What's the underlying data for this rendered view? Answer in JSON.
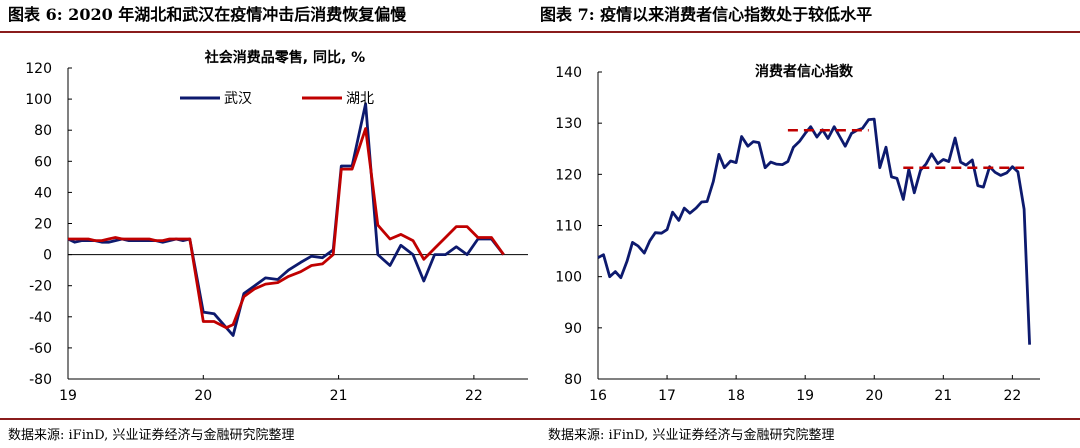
{
  "header": {
    "left": "图表 6: 2020 年湖北和武汉在疫情冲击后消费恢复偏慢",
    "right": "图表 7: 疫情以来消费者信心指数处于较低水平"
  },
  "source": {
    "left": "数据来源: iFinD, 兴业证券经济与金融研究院整理",
    "right": "数据来源: iFinD, 兴业证券经济与金融研究院整理"
  },
  "colors": {
    "wuhan": "#0d1a6e",
    "hubei": "#c00000",
    "confidence": "#0d1a6e",
    "reference": "#c00000"
  },
  "chart_data": [
    {
      "type": "line",
      "title": "社会消费品零售, 同比, %",
      "ylim": [
        -80,
        120
      ],
      "yticks": [
        -80,
        -60,
        -40,
        -20,
        0,
        20,
        40,
        60,
        80,
        100,
        120
      ],
      "xlim": [
        2019.0,
        2022.4
      ],
      "xticks": [
        {
          "x": 2019,
          "label": "19"
        },
        {
          "x": 2020,
          "label": "20"
        },
        {
          "x": 2021,
          "label": "21"
        },
        {
          "x": 2022,
          "label": "22"
        }
      ],
      "legend": "top-center",
      "series": [
        {
          "name": "武汉",
          "points": [
            [
              2019.0,
              10
            ],
            [
              2019.05,
              8
            ],
            [
              2019.1,
              9
            ],
            [
              2019.15,
              9
            ],
            [
              2019.2,
              9
            ],
            [
              2019.25,
              8
            ],
            [
              2019.3,
              8
            ],
            [
              2019.35,
              9
            ],
            [
              2019.4,
              10
            ],
            [
              2019.45,
              9
            ],
            [
              2019.5,
              9
            ],
            [
              2019.55,
              9
            ],
            [
              2019.6,
              9
            ],
            [
              2019.65,
              9
            ],
            [
              2019.7,
              8
            ],
            [
              2019.75,
              9
            ],
            [
              2019.8,
              10
            ],
            [
              2019.85,
              9
            ],
            [
              2019.9,
              10
            ],
            [
              2020.0,
              -37
            ],
            [
              2020.08,
              -38
            ],
            [
              2020.17,
              -47
            ],
            [
              2020.22,
              -52
            ],
            [
              2020.3,
              -25
            ],
            [
              2020.38,
              -20
            ],
            [
              2020.46,
              -15
            ],
            [
              2020.55,
              -16
            ],
            [
              2020.63,
              -10
            ],
            [
              2020.72,
              -5
            ],
            [
              2020.8,
              -1
            ],
            [
              2020.88,
              -2
            ],
            [
              2020.96,
              3
            ],
            [
              2021.02,
              57
            ],
            [
              2021.1,
              57
            ],
            [
              2021.2,
              97
            ],
            [
              2021.29,
              0
            ],
            [
              2021.38,
              -7
            ],
            [
              2021.46,
              6
            ],
            [
              2021.55,
              0
            ],
            [
              2021.63,
              -17
            ],
            [
              2021.71,
              0
            ],
            [
              2021.79,
              0
            ],
            [
              2021.87,
              5
            ],
            [
              2021.95,
              0
            ],
            [
              2022.03,
              10
            ],
            [
              2022.13,
              10
            ],
            [
              2022.22,
              0
            ]
          ]
        },
        {
          "name": "湖北",
          "points": [
            [
              2019.0,
              10
            ],
            [
              2019.05,
              10
            ],
            [
              2019.1,
              10
            ],
            [
              2019.15,
              10
            ],
            [
              2019.2,
              9
            ],
            [
              2019.25,
              9
            ],
            [
              2019.3,
              10
            ],
            [
              2019.35,
              11
            ],
            [
              2019.4,
              10
            ],
            [
              2019.45,
              10
            ],
            [
              2019.5,
              10
            ],
            [
              2019.55,
              10
            ],
            [
              2019.6,
              10
            ],
            [
              2019.65,
              9
            ],
            [
              2019.7,
              9
            ],
            [
              2019.75,
              10
            ],
            [
              2019.8,
              10
            ],
            [
              2019.85,
              10
            ],
            [
              2019.9,
              10
            ],
            [
              2020.0,
              -43
            ],
            [
              2020.08,
              -43
            ],
            [
              2020.17,
              -47
            ],
            [
              2020.22,
              -45
            ],
            [
              2020.3,
              -27
            ],
            [
              2020.38,
              -22
            ],
            [
              2020.46,
              -19
            ],
            [
              2020.55,
              -18
            ],
            [
              2020.63,
              -14
            ],
            [
              2020.72,
              -11
            ],
            [
              2020.8,
              -7
            ],
            [
              2020.88,
              -6
            ],
            [
              2020.96,
              0
            ],
            [
              2021.02,
              55
            ],
            [
              2021.1,
              55
            ],
            [
              2021.2,
              81
            ],
            [
              2021.29,
              19
            ],
            [
              2021.38,
              10
            ],
            [
              2021.46,
              13
            ],
            [
              2021.55,
              9
            ],
            [
              2021.63,
              -3
            ],
            [
              2021.71,
              4
            ],
            [
              2021.79,
              11
            ],
            [
              2021.87,
              18
            ],
            [
              2021.95,
              18
            ],
            [
              2022.03,
              11
            ],
            [
              2022.13,
              11
            ],
            [
              2022.22,
              0
            ]
          ]
        }
      ]
    },
    {
      "type": "line",
      "title": "消费者信心指数",
      "ylim": [
        80,
        140
      ],
      "yticks": [
        80,
        90,
        100,
        110,
        120,
        130,
        140
      ],
      "xlim": [
        2016.0,
        2022.4
      ],
      "xticks": [
        {
          "x": 2016,
          "label": "16"
        },
        {
          "x": 2017,
          "label": "17"
        },
        {
          "x": 2018,
          "label": "18"
        },
        {
          "x": 2019,
          "label": "19"
        },
        {
          "x": 2020,
          "label": "20"
        },
        {
          "x": 2021,
          "label": "21"
        },
        {
          "x": 2022,
          "label": "22"
        }
      ],
      "series": [
        {
          "points": [
            [
              2016.0,
              103.7
            ],
            [
              2016.08,
              104.3
            ],
            [
              2016.17,
              100.0
            ],
            [
              2016.25,
              101.0
            ],
            [
              2016.33,
              99.8
            ],
            [
              2016.42,
              103.0
            ],
            [
              2016.5,
              106.7
            ],
            [
              2016.58,
              106.0
            ],
            [
              2016.67,
              104.6
            ],
            [
              2016.75,
              107.0
            ],
            [
              2016.83,
              108.6
            ],
            [
              2016.92,
              108.5
            ],
            [
              2017.0,
              109.2
            ],
            [
              2017.08,
              112.6
            ],
            [
              2017.17,
              111.0
            ],
            [
              2017.25,
              113.4
            ],
            [
              2017.33,
              112.4
            ],
            [
              2017.42,
              113.4
            ],
            [
              2017.5,
              114.6
            ],
            [
              2017.58,
              114.7
            ],
            [
              2017.67,
              118.6
            ],
            [
              2017.75,
              123.9
            ],
            [
              2017.83,
              121.3
            ],
            [
              2017.92,
              122.6
            ],
            [
              2018.0,
              122.3
            ],
            [
              2018.08,
              127.4
            ],
            [
              2018.17,
              125.5
            ],
            [
              2018.25,
              126.4
            ],
            [
              2018.33,
              126.2
            ],
            [
              2018.42,
              121.3
            ],
            [
              2018.5,
              122.4
            ],
            [
              2018.58,
              122.0
            ],
            [
              2018.67,
              121.9
            ],
            [
              2018.75,
              122.5
            ],
            [
              2018.83,
              125.3
            ],
            [
              2018.92,
              126.5
            ],
            [
              2019.0,
              128.0
            ],
            [
              2019.08,
              129.3
            ],
            [
              2019.17,
              127.3
            ],
            [
              2019.25,
              128.7
            ],
            [
              2019.33,
              127.0
            ],
            [
              2019.42,
              129.3
            ],
            [
              2019.5,
              127.4
            ],
            [
              2019.58,
              125.5
            ],
            [
              2019.67,
              128.0
            ],
            [
              2019.75,
              128.6
            ],
            [
              2019.83,
              129.0
            ],
            [
              2019.92,
              130.7
            ],
            [
              2020.0,
              130.8
            ],
            [
              2020.08,
              121.3
            ],
            [
              2020.17,
              125.3
            ],
            [
              2020.25,
              119.5
            ],
            [
              2020.33,
              119.2
            ],
            [
              2020.42,
              115.1
            ],
            [
              2020.5,
              121.0
            ],
            [
              2020.58,
              116.4
            ],
            [
              2020.67,
              120.8
            ],
            [
              2020.75,
              122.0
            ],
            [
              2020.83,
              124.0
            ],
            [
              2020.92,
              122.1
            ],
            [
              2021.0,
              122.9
            ],
            [
              2021.08,
              122.5
            ],
            [
              2021.17,
              127.1
            ],
            [
              2021.25,
              122.4
            ],
            [
              2021.33,
              121.8
            ],
            [
              2021.42,
              122.8
            ],
            [
              2021.5,
              117.8
            ],
            [
              2021.58,
              117.5
            ],
            [
              2021.67,
              121.5
            ],
            [
              2021.75,
              120.4
            ],
            [
              2021.83,
              119.8
            ],
            [
              2021.92,
              120.3
            ],
            [
              2022.0,
              121.5
            ],
            [
              2022.08,
              120.5
            ],
            [
              2022.17,
              113.2
            ],
            [
              2022.25,
              86.7
            ]
          ]
        },
        {
          "style": "dashed",
          "points": [
            [
              2018.75,
              128.6
            ],
            [
              2019.92,
              128.6
            ]
          ]
        },
        {
          "style": "dashed",
          "points": [
            [
              2020.42,
              121.3
            ],
            [
              2022.17,
              121.3
            ]
          ]
        }
      ]
    }
  ]
}
